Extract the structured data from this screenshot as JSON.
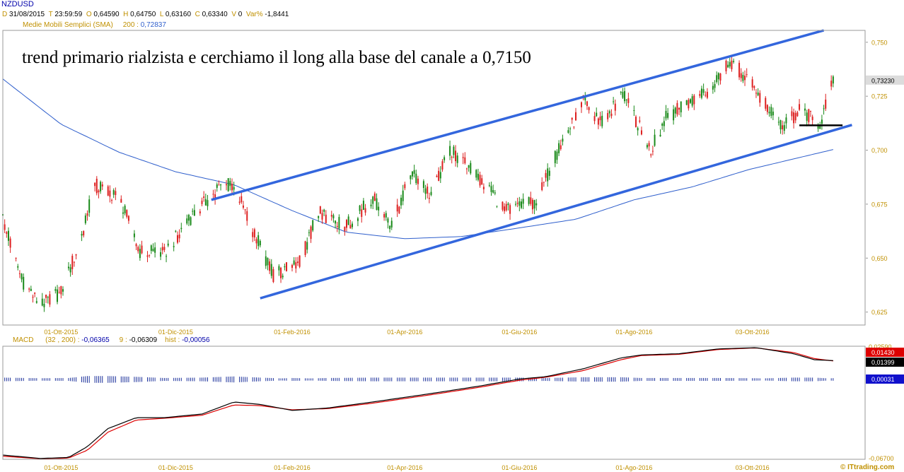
{
  "symbol": "NZDUSD",
  "info": {
    "d_key": "D",
    "d_val": "31/08/2015",
    "t_key": "T",
    "t_val": "23:59:59",
    "o_key": "O",
    "o_val": "0,64590",
    "h_key": "H",
    "h_val": "0,64750",
    "l_key": "L",
    "l_val": "0,63160",
    "c_key": "C",
    "c_val": "0,63340",
    "v_key": "V",
    "v_val": "0",
    "var_key": "Var%",
    "var_val": "-1,8441"
  },
  "sma": {
    "label": "Medie Mobili Semplici (SMA)",
    "period": "200 :",
    "value": "0,72837"
  },
  "macd_header": {
    "label": "MACD",
    "params": "(32 , 200) :",
    "val1": "-0,06365",
    "sig_key": "9 :",
    "val2": "-0,06309",
    "hist_key": "hist :",
    "val3": "-0,00056"
  },
  "annotation": "trend primario rialzista e cerchiamo il long alla base del canale a 0,7150",
  "watermark": "© ITtrading.com",
  "colors": {
    "bull": "#1a8a1a",
    "bear": "#dd2020",
    "sma": "#2f5fcc",
    "channel": "#3366dd",
    "macd": "#000000",
    "signal": "#dd0000",
    "hist": "#1a2f9a",
    "axis_text": "#c09000",
    "header_text": "#0000aa"
  },
  "chart_data": [
    {
      "type": "candlestick",
      "title": "NZDUSD",
      "x_ticks": [
        "01-Ott-2015",
        "01-Dic-2015",
        "01-Feb-2016",
        "01-Apr-2016",
        "01-Giu-2016",
        "01-Ago-2016",
        "03-Ott-2016"
      ],
      "y_ticks": [
        "0,750",
        "0,725",
        "0,700",
        "0,675",
        "0,650",
        "0,625"
      ],
      "ylim": [
        0.619,
        0.7555
      ],
      "last_price_label": "0,73230",
      "trend_waypoints": [
        [
          "2015-08-31",
          0.668
        ],
        [
          "2015-09-10",
          0.64
        ],
        [
          "2015-09-20",
          0.628
        ],
        [
          "2015-10-01",
          0.634
        ],
        [
          "2015-10-12",
          0.66
        ],
        [
          "2015-10-19",
          0.684
        ],
        [
          "2015-11-01",
          0.678
        ],
        [
          "2015-11-12",
          0.653
        ],
        [
          "2015-11-25",
          0.652
        ],
        [
          "2015-12-10",
          0.67
        ],
        [
          "2015-12-25",
          0.683
        ],
        [
          "2016-01-01",
          0.684
        ],
        [
          "2016-01-12",
          0.661
        ],
        [
          "2016-01-22",
          0.642
        ],
        [
          "2016-02-05",
          0.648
        ],
        [
          "2016-02-15",
          0.671
        ],
        [
          "2016-03-01",
          0.665
        ],
        [
          "2016-03-15",
          0.678
        ],
        [
          "2016-03-25",
          0.665
        ],
        [
          "2016-04-05",
          0.69
        ],
        [
          "2016-04-15",
          0.679
        ],
        [
          "2016-04-25",
          0.7
        ],
        [
          "2016-05-10",
          0.688
        ],
        [
          "2016-05-25",
          0.672
        ],
        [
          "2016-06-10",
          0.676
        ],
        [
          "2016-06-20",
          0.697
        ],
        [
          "2016-07-05",
          0.722
        ],
        [
          "2016-07-15",
          0.713
        ],
        [
          "2016-07-26",
          0.726
        ],
        [
          "2016-08-10",
          0.7
        ],
        [
          "2016-08-18",
          0.715
        ],
        [
          "2016-08-30",
          0.722
        ],
        [
          "2016-09-10",
          0.728
        ],
        [
          "2016-09-21",
          0.742
        ],
        [
          "2016-10-05",
          0.728
        ],
        [
          "2016-10-19",
          0.71
        ],
        [
          "2016-10-28",
          0.719
        ],
        [
          "2016-11-08",
          0.712
        ],
        [
          "2016-11-15",
          0.732
        ]
      ],
      "sma200_waypoints": [
        [
          "2015-08-31",
          0.733
        ],
        [
          "2015-10-01",
          0.712
        ],
        [
          "2015-11-01",
          0.699
        ],
        [
          "2015-12-01",
          0.69
        ],
        [
          "2016-01-01",
          0.684
        ],
        [
          "2016-02-01",
          0.672
        ],
        [
          "2016-03-01",
          0.662
        ],
        [
          "2016-04-01",
          0.659
        ],
        [
          "2016-05-01",
          0.66
        ],
        [
          "2016-06-01",
          0.664
        ],
        [
          "2016-07-01",
          0.668
        ],
        [
          "2016-08-01",
          0.677
        ],
        [
          "2016-09-01",
          0.683
        ],
        [
          "2016-10-01",
          0.691
        ],
        [
          "2016-11-15",
          0.7003
        ]
      ],
      "channel_upper": [
        [
          "2015-12-20",
          0.677
        ],
        [
          "2016-11-10",
          0.7555
        ]
      ],
      "channel_lower": [
        [
          "2016-01-15",
          0.6314
        ],
        [
          "2016-11-25",
          0.7117
        ]
      ],
      "support_level": [
        [
          "2016-10-28",
          0.7115
        ],
        [
          "2016-11-20",
          0.7115
        ]
      ]
    },
    {
      "type": "line",
      "title": "MACD",
      "y_ticks": [
        "0,02590",
        "-0,06700"
      ],
      "ylim": [
        -0.0675,
        0.0262
      ],
      "value_labels": [
        "0,01430",
        "0,01399",
        "0,00031"
      ],
      "macd_waypoints": [
        [
          "2015-08-31",
          -0.064
        ],
        [
          "2015-09-20",
          -0.0668
        ],
        [
          "2015-10-05",
          -0.066
        ],
        [
          "2015-10-15",
          -0.057
        ],
        [
          "2015-10-26",
          -0.042
        ],
        [
          "2015-11-10",
          -0.033
        ],
        [
          "2015-11-25",
          -0.033
        ],
        [
          "2015-12-15",
          -0.03
        ],
        [
          "2016-01-01",
          -0.02
        ],
        [
          "2016-01-15",
          -0.022
        ],
        [
          "2016-02-01",
          -0.027
        ],
        [
          "2016-02-20",
          -0.025
        ],
        [
          "2016-03-15",
          -0.02
        ],
        [
          "2016-04-15",
          -0.013
        ],
        [
          "2016-05-10",
          -0.007
        ],
        [
          "2016-06-01",
          -0.001
        ],
        [
          "2016-06-15",
          0.001
        ],
        [
          "2016-07-05",
          0.0075
        ],
        [
          "2016-07-25",
          0.0165
        ],
        [
          "2016-08-05",
          0.019
        ],
        [
          "2016-08-25",
          0.02
        ],
        [
          "2016-09-15",
          0.024
        ],
        [
          "2016-10-05",
          0.025
        ],
        [
          "2016-10-25",
          0.02
        ],
        [
          "2016-11-05",
          0.015
        ],
        [
          "2016-11-15",
          0.0143
        ]
      ],
      "signal_waypoints": [
        [
          "2015-08-31",
          -0.065
        ],
        [
          "2015-09-20",
          -0.067
        ],
        [
          "2015-10-05",
          -0.0665
        ],
        [
          "2015-10-15",
          -0.06
        ],
        [
          "2015-10-26",
          -0.045
        ],
        [
          "2015-11-10",
          -0.035
        ],
        [
          "2015-11-25",
          -0.0335
        ],
        [
          "2015-12-15",
          -0.031
        ],
        [
          "2016-01-01",
          -0.0225
        ],
        [
          "2016-01-15",
          -0.023
        ],
        [
          "2016-02-01",
          -0.0265
        ],
        [
          "2016-02-20",
          -0.0255
        ],
        [
          "2016-03-15",
          -0.021
        ],
        [
          "2016-04-15",
          -0.014
        ],
        [
          "2016-05-10",
          -0.008
        ],
        [
          "2016-06-01",
          -0.002
        ],
        [
          "2016-06-15",
          0.0005
        ],
        [
          "2016-07-05",
          0.006
        ],
        [
          "2016-07-25",
          0.015
        ],
        [
          "2016-08-05",
          0.0185
        ],
        [
          "2016-08-25",
          0.0195
        ],
        [
          "2016-09-15",
          0.0235
        ],
        [
          "2016-10-05",
          0.0248
        ],
        [
          "2016-10-25",
          0.021
        ],
        [
          "2016-11-05",
          0.016
        ],
        [
          "2016-11-15",
          0.014
        ]
      ]
    }
  ]
}
